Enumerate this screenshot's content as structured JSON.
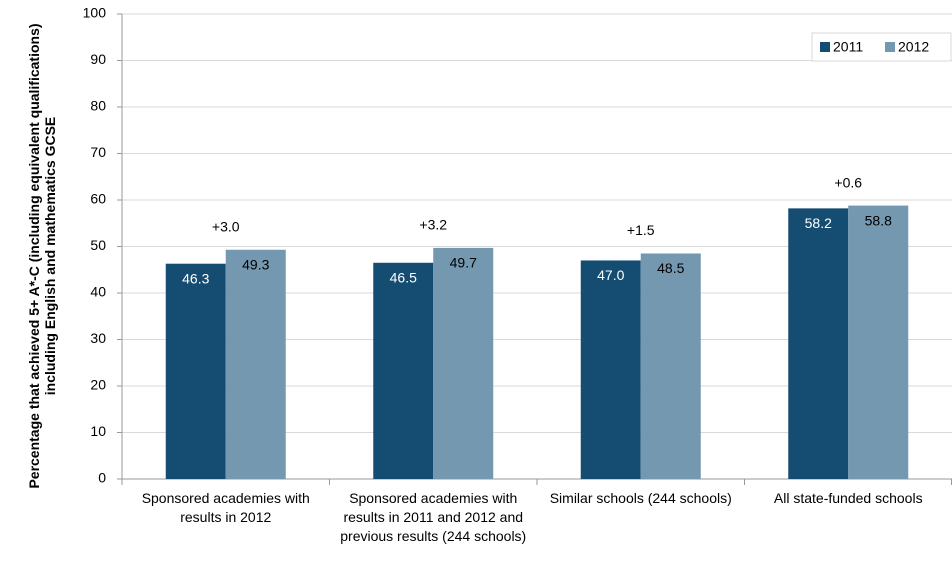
{
  "chart_data": {
    "type": "bar",
    "ylabel": "Percentage that achieved 5+ A*-C (including equivalent qualifications) including English and mathematics GCSE",
    "categories": [
      "Sponsored academies with results in 2012",
      "Sponsored academies with results in 2011 and 2012 and previous results (244 schools)",
      "Similar schools (244 schools)",
      "All state-funded schools"
    ],
    "series": [
      {
        "name": "2011",
        "color": "#154d72",
        "values": [
          46.3,
          46.5,
          47.0,
          58.2
        ],
        "value_labels": [
          "46.3",
          "46.5",
          "47.0",
          "58.2"
        ]
      },
      {
        "name": "2012",
        "color": "#7498b0",
        "values": [
          49.3,
          49.7,
          48.5,
          58.8
        ],
        "value_labels": [
          "49.3",
          "49.7",
          "48.5",
          "58.8"
        ]
      }
    ],
    "annotations": [
      "+3.0",
      "+3.2",
      "+1.5",
      "+0.6"
    ],
    "ylim": [
      0,
      100
    ],
    "yticks": [
      0,
      10,
      20,
      30,
      40,
      50,
      60,
      70,
      80,
      90,
      100
    ],
    "grid": true,
    "legend": "top-right"
  }
}
